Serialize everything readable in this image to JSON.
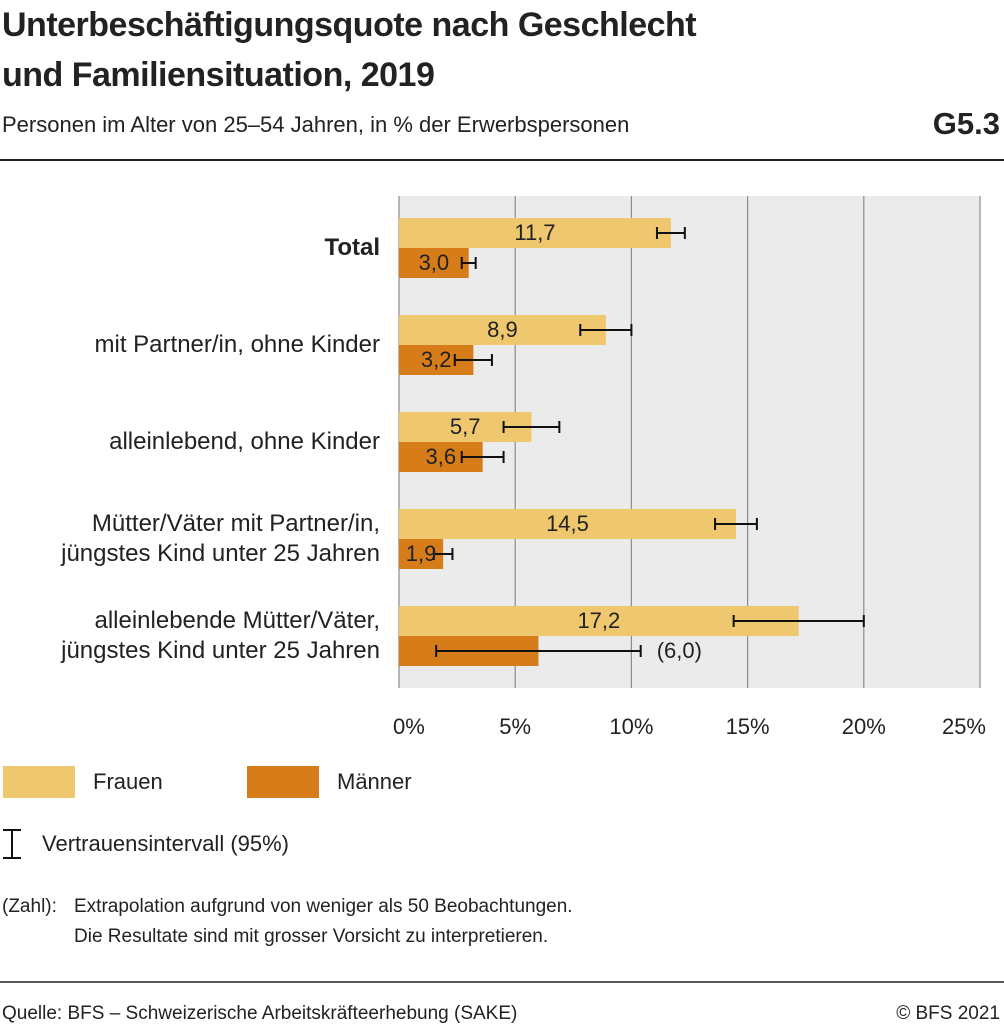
{
  "chart_data": {
    "type": "bar",
    "orientation": "horizontal",
    "title": [
      "Unterbeschäftigungsquote nach Geschlecht",
      "und Familiensituation, 2019"
    ],
    "subtitle": "Personen im Alter von 25–54 Jahren, in % der Erwerbspersonen",
    "chart_id": "G5.3",
    "categories": [
      "Total",
      "mit Partner/in, ohne Kinder",
      "alleinlebend, ohne Kinder",
      "Mütter/Väter mit Partner/in, jüngstes Kind unter 25 Jahren",
      "alleinlebende Mütter/Väter, jüngstes Kind unter 25 Jahren"
    ],
    "series": [
      {
        "name": "Frauen",
        "color": "#eec76e",
        "values": [
          11.7,
          8.9,
          5.7,
          14.5,
          17.2
        ],
        "errors": [
          0.6,
          1.1,
          1.2,
          0.9,
          2.8
        ],
        "value_labels": [
          "11,7",
          "8,9",
          "5,7",
          "14,5",
          "17,2"
        ]
      },
      {
        "name": "Männer",
        "color": "#d67d1a",
        "values": [
          3.0,
          3.2,
          3.6,
          1.9,
          6.0
        ],
        "errors": [
          0.3,
          0.8,
          0.9,
          0.4,
          4.4
        ],
        "value_labels": [
          "3,0",
          "3,2",
          "3,6",
          "1,9",
          "(6,0)"
        ]
      }
    ],
    "xlim": [
      0,
      25
    ],
    "xticks": [
      {
        "value": 0,
        "label": "0%"
      },
      {
        "value": 5,
        "label": "5%"
      },
      {
        "value": 10,
        "label": "10%"
      },
      {
        "value": 15,
        "label": "15%"
      },
      {
        "value": 20,
        "label": "20%"
      },
      {
        "value": 25,
        "label": "25%"
      }
    ],
    "grid": true,
    "ci_legend": "Vertrauensintervall (95%)",
    "note_key": "(Zahl):",
    "note": [
      "Extrapolation aufgrund von weniger als 50 Beobachtungen.",
      "Die Resultate sind mit grosser Vorsicht zu interpretieren."
    ],
    "source": "Quelle: BFS – Schweizerische Arbeitskräfteerhebung (SAKE)",
    "copyright": "© BFS 2021"
  }
}
